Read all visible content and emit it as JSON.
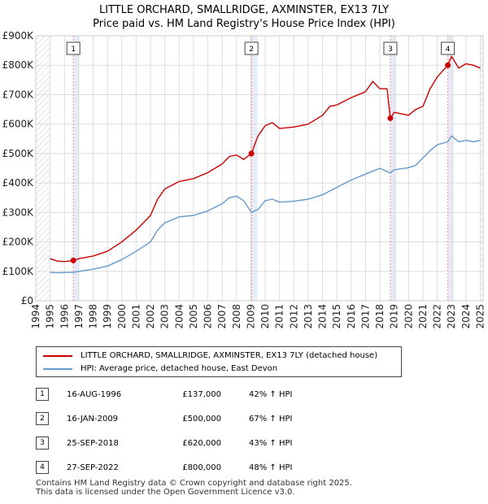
{
  "chart_data": {
    "type": "line",
    "title": "LITTLE ORCHARD, SMALLRIDGE, AXMINSTER, EX13 7LY",
    "subtitle": "Price paid vs. HM Land Registry's House Price Index (HPI)",
    "xlim": [
      1994,
      2025
    ],
    "ylim": [
      0,
      900000
    ],
    "y_ticks": [
      {
        "value": 0,
        "label": "£0"
      },
      {
        "value": 100000,
        "label": "£100K"
      },
      {
        "value": 200000,
        "label": "£200K"
      },
      {
        "value": 300000,
        "label": "£300K"
      },
      {
        "value": 400000,
        "label": "£400K"
      },
      {
        "value": 500000,
        "label": "£500K"
      },
      {
        "value": 600000,
        "label": "£600K"
      },
      {
        "value": 700000,
        "label": "£700K"
      },
      {
        "value": 800000,
        "label": "£800K"
      },
      {
        "value": 900000,
        "label": "£900K"
      }
    ],
    "x_ticks": [
      "1994",
      "1995",
      "1996",
      "1997",
      "1998",
      "1999",
      "2000",
      "2001",
      "2002",
      "2003",
      "2004",
      "2005",
      "2006",
      "2007",
      "2008",
      "2009",
      "2010",
      "2011",
      "2012",
      "2013",
      "2014",
      "2015",
      "2016",
      "2017",
      "2018",
      "2019",
      "2020",
      "2021",
      "2022",
      "2023",
      "2024",
      "2025"
    ],
    "hatched_ranges": [
      [
        1994,
        1995
      ],
      [
        2025,
        2025.5
      ]
    ],
    "series": [
      {
        "name": "LITTLE ORCHARD, SMALLRIDGE, AXMINSTER, EX13 7LY (detached house)",
        "color": "#cc0000",
        "points": [
          [
            1995,
            143000
          ],
          [
            1995.5,
            135000
          ],
          [
            1996,
            133000
          ],
          [
            1996.62,
            137000
          ],
          [
            1997,
            143000
          ],
          [
            1998,
            152000
          ],
          [
            1999,
            168000
          ],
          [
            2000,
            200000
          ],
          [
            2001,
            240000
          ],
          [
            2002,
            290000
          ],
          [
            2002.5,
            345000
          ],
          [
            2003,
            380000
          ],
          [
            2004,
            405000
          ],
          [
            2005,
            415000
          ],
          [
            2006,
            435000
          ],
          [
            2007,
            465000
          ],
          [
            2007.5,
            490000
          ],
          [
            2008,
            495000
          ],
          [
            2008.5,
            480000
          ],
          [
            2009.04,
            500000
          ],
          [
            2009.5,
            560000
          ],
          [
            2010,
            595000
          ],
          [
            2010.5,
            605000
          ],
          [
            2011,
            585000
          ],
          [
            2012,
            590000
          ],
          [
            2013,
            600000
          ],
          [
            2014,
            630000
          ],
          [
            2014.5,
            660000
          ],
          [
            2015,
            665000
          ],
          [
            2016,
            690000
          ],
          [
            2017,
            710000
          ],
          [
            2017.5,
            745000
          ],
          [
            2018,
            720000
          ],
          [
            2018.5,
            720000
          ],
          [
            2018.73,
            620000
          ],
          [
            2019,
            640000
          ],
          [
            2020,
            630000
          ],
          [
            2020.5,
            650000
          ],
          [
            2021,
            660000
          ],
          [
            2021.5,
            720000
          ],
          [
            2022,
            760000
          ],
          [
            2022.74,
            800000
          ],
          [
            2023,
            830000
          ],
          [
            2023.5,
            790000
          ],
          [
            2024,
            805000
          ],
          [
            2024.5,
            800000
          ],
          [
            2025,
            790000
          ]
        ]
      },
      {
        "name": "HPI: Average price, detached house, East Devon",
        "color": "#6699cc",
        "points": [
          [
            1995,
            97000
          ],
          [
            1995.5,
            95000
          ],
          [
            1996,
            96000
          ],
          [
            1996.62,
            96500
          ],
          [
            1997,
            100000
          ],
          [
            1998,
            107000
          ],
          [
            1999,
            118000
          ],
          [
            2000,
            140000
          ],
          [
            2001,
            168000
          ],
          [
            2002,
            200000
          ],
          [
            2002.5,
            240000
          ],
          [
            2003,
            265000
          ],
          [
            2004,
            285000
          ],
          [
            2005,
            290000
          ],
          [
            2006,
            305000
          ],
          [
            2007,
            330000
          ],
          [
            2007.5,
            350000
          ],
          [
            2008,
            355000
          ],
          [
            2008.5,
            340000
          ],
          [
            2009.04,
            300000
          ],
          [
            2009.5,
            310000
          ],
          [
            2010,
            340000
          ],
          [
            2010.5,
            345000
          ],
          [
            2011,
            335000
          ],
          [
            2012,
            338000
          ],
          [
            2013,
            345000
          ],
          [
            2014,
            360000
          ],
          [
            2015,
            385000
          ],
          [
            2016,
            410000
          ],
          [
            2017,
            430000
          ],
          [
            2018,
            450000
          ],
          [
            2018.73,
            434000
          ],
          [
            2019,
            445000
          ],
          [
            2020,
            452000
          ],
          [
            2020.5,
            460000
          ],
          [
            2021,
            485000
          ],
          [
            2021.5,
            510000
          ],
          [
            2022,
            530000
          ],
          [
            2022.74,
            540000
          ],
          [
            2023,
            560000
          ],
          [
            2023.5,
            540000
          ],
          [
            2024,
            545000
          ],
          [
            2024.5,
            540000
          ],
          [
            2025,
            545000
          ]
        ]
      }
    ],
    "sales": [
      {
        "num": "1",
        "year": 1996.62,
        "value": 137000,
        "date": "16-AUG-1996",
        "price": "£137,000",
        "hpi": "42% ↑ HPI"
      },
      {
        "num": "2",
        "year": 2009.04,
        "value": 500000,
        "date": "16-JAN-2009",
        "price": "£500,000",
        "hpi": "67% ↑ HPI"
      },
      {
        "num": "3",
        "year": 2018.73,
        "value": 620000,
        "date": "25-SEP-2018",
        "price": "£620,000",
        "hpi": "43% ↑ HPI"
      },
      {
        "num": "4",
        "year": 2022.74,
        "value": 800000,
        "date": "27-SEP-2022",
        "price": "£800,000",
        "hpi": "48% ↑ HPI"
      }
    ]
  },
  "legend": {
    "property_label": "LITTLE ORCHARD, SMALLRIDGE, AXMINSTER, EX13 7LY (detached house)",
    "hpi_label": "HPI: Average price, detached house, East Devon"
  },
  "footer": {
    "line1": "Contains HM Land Registry data © Crown copyright and database right 2025.",
    "line2": "This data is licensed under the Open Government Licence v3.0."
  },
  "colors": {
    "property": "#cc0000",
    "hpi": "#6699cc",
    "vline": "#ff8888",
    "shade": "#dde6f5"
  }
}
